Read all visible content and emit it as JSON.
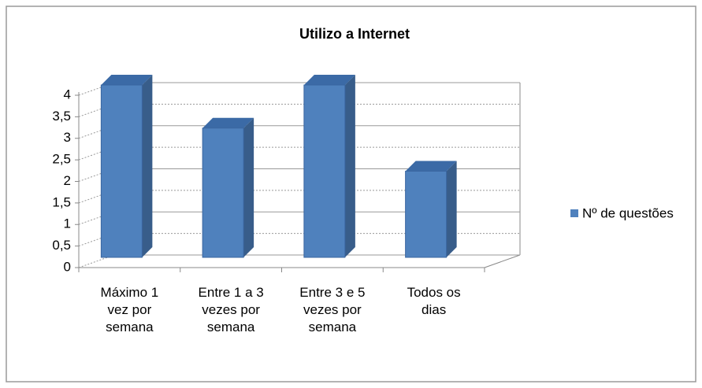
{
  "chart_data": {
    "type": "bar3d",
    "title": "Utilizo a Internet",
    "categories": [
      "Máximo 1 vez por semana",
      "Entre 1 a 3 vezes por semana",
      "Entre 3 e 5 vezes por semana",
      "Todos os dias"
    ],
    "series": [
      {
        "name": "Nº de questões",
        "color": "#4f81bd",
        "values": [
          4,
          3,
          4,
          2
        ]
      }
    ],
    "ylim": [
      0,
      4
    ],
    "yticks": [
      0,
      {
        "value": 0.5,
        "label": "0,5"
      },
      1,
      {
        "value": 1.5,
        "label": "1,5"
      },
      2,
      {
        "value": 2.5,
        "label": "2,5"
      },
      3,
      {
        "value": 3.5,
        "label": "3,5"
      },
      4
    ],
    "grid": true,
    "legend": "right"
  }
}
